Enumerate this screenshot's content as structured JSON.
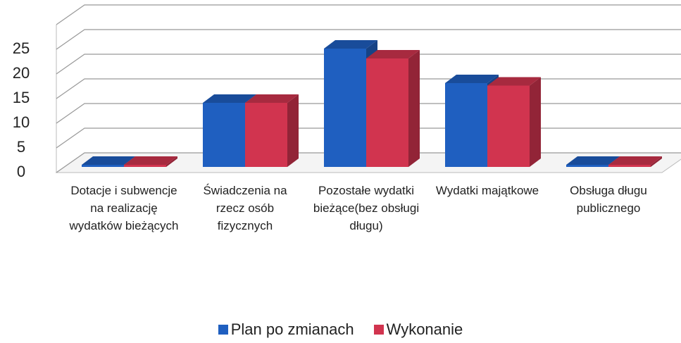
{
  "chart_data": {
    "type": "bar3d",
    "categories": [
      "Dotacje i subwencje na realizację wydatków bieżących",
      "Świadczenia na rzecz osób fizycznych",
      "Pozostałe wydatki bieżące(bez obsługi długu)",
      "Wydatki majątkowe",
      "Obsługa długu publicznego"
    ],
    "series": [
      {
        "name": "Plan po zmianach",
        "color": "#1f5fc0",
        "values": [
          0,
          13,
          24,
          17,
          0
        ]
      },
      {
        "name": "Wykonanie",
        "color": "#d1344f",
        "values": [
          0,
          13,
          22,
          16.5,
          0
        ]
      }
    ],
    "ylim": [
      0,
      30
    ],
    "yticks": [
      0,
      5,
      10,
      15,
      20,
      25
    ],
    "grid": true,
    "legend": "bottom"
  }
}
